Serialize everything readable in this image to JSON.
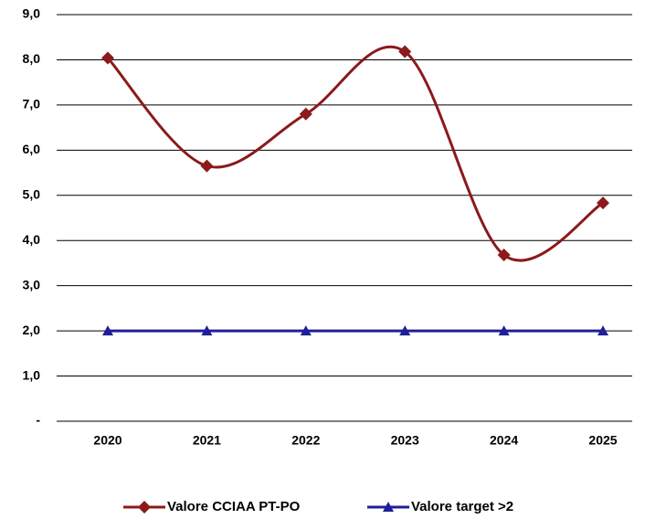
{
  "chart_data": {
    "type": "line",
    "categories": [
      "2020",
      "2021",
      "2022",
      "2023",
      "2024",
      "2025"
    ],
    "series": [
      {
        "name": "Valore CCIAA PT-PO",
        "color": "#8b1a1a",
        "marker": "diamond",
        "smooth": true,
        "values": [
          8.04,
          5.65,
          6.8,
          8.18,
          3.68,
          4.83
        ]
      },
      {
        "name": "Valore target >2",
        "color": "#1f1f99",
        "marker": "triangle",
        "smooth": false,
        "values": [
          2,
          2,
          2,
          2,
          2,
          2
        ]
      }
    ],
    "ylim": [
      0,
      9
    ],
    "yticks": [
      {
        "value": 0,
        "label": "-"
      },
      {
        "value": 1,
        "label": "1,0"
      },
      {
        "value": 2,
        "label": "2,0"
      },
      {
        "value": 3,
        "label": "3,0"
      },
      {
        "value": 4,
        "label": "4,0"
      },
      {
        "value": 5,
        "label": "5,0"
      },
      {
        "value": 6,
        "label": "6,0"
      },
      {
        "value": 7,
        "label": "7,0"
      },
      {
        "value": 8,
        "label": "8,0"
      },
      {
        "value": 9,
        "label": "9,0"
      }
    ],
    "grid": true,
    "legend": "bottom"
  }
}
